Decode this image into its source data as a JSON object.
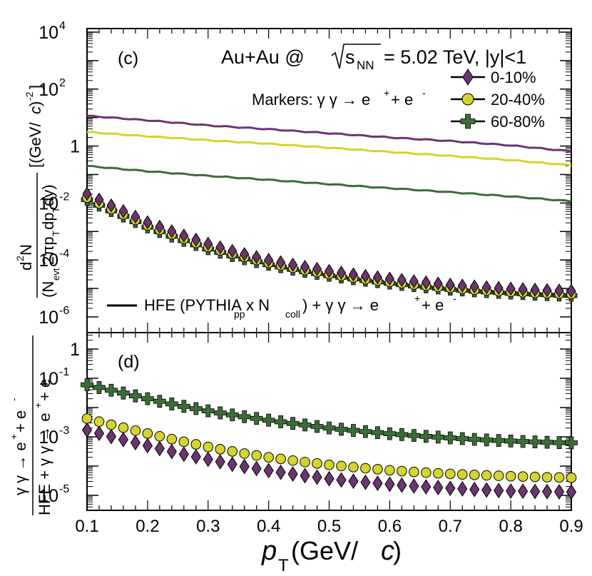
{
  "chart_data": [
    {
      "type": "line",
      "panel_label": "(c)",
      "title_prefix": "Au+Au @",
      "title_sqrt": "s",
      "title_sqrt_sub": "NN",
      "title_suffix": "= 5.02 TeV, |y|<1",
      "ylabel": "d²N / (N_evt 2π p_T dp_T dy) [(GeV/c)^-2]",
      "ylabel_parts": {
        "num": "d",
        "num_sup": "2",
        "num_n": "N",
        "den_a": "(N",
        "den_sub": "evt",
        "den_b": "2πp",
        "den_sub2": "T",
        "den_c": "dp",
        "den_sub3": "T",
        "den_d": "dy)",
        "units": "[(GeV/",
        "units_c": "c",
        "units_end": ")",
        "units_sup": "-2",
        "units_close": "]"
      },
      "ylim": [
        1e-06,
        10000.0
      ],
      "yscale": "log",
      "yticks": [
        {
          "value": 10000.0,
          "base": "10",
          "exp": "4"
        },
        {
          "value": 100.0,
          "base": "10",
          "exp": "2"
        },
        {
          "value": 1,
          "base": "1",
          "exp": ""
        },
        {
          "value": 0.01,
          "base": "10",
          "exp": "-2"
        },
        {
          "value": 0.0001,
          "base": "10",
          "exp": "-4"
        },
        {
          "value": 1e-06,
          "base": "10",
          "exp": "-6"
        }
      ],
      "xlim": [
        0.1,
        0.9
      ],
      "markers_label": "Markers: γ γ → e",
      "markers_sup1": "+",
      "markers_mid": " + e",
      "markers_sup2": "-",
      "line_legend": "HFE (PYTHIA",
      "line_legend_sub": "pp",
      "line_legend_mid": " x N",
      "line_legend_sub2": "coll",
      "line_legend_end": ") + γ γ → e",
      "line_legend_sup1": "+",
      "line_legend_mid2": " + e",
      "line_legend_sup2": "-",
      "series": [
        {
          "name": "0-10%",
          "color": "#6b3570",
          "marker": "diamond",
          "line_points": [
            [
              0.1,
              11.5
            ],
            [
              0.2,
              8.0
            ],
            [
              0.3,
              5.3
            ],
            [
              0.4,
              3.9
            ],
            [
              0.5,
              2.8
            ],
            [
              0.6,
              2.0
            ],
            [
              0.7,
              1.5
            ],
            [
              0.8,
              1.05
            ],
            [
              0.9,
              0.65
            ]
          ],
          "marker_points": [
            [
              0.1,
              0.021
            ],
            [
              0.15,
              0.0065
            ],
            [
              0.2,
              0.0021
            ],
            [
              0.25,
              0.00085
            ],
            [
              0.3,
              0.00037
            ],
            [
              0.35,
              0.00018
            ],
            [
              0.4,
              0.0001
            ],
            [
              0.45,
              6.2e-05
            ],
            [
              0.5,
              4.1e-05
            ],
            [
              0.55,
              2.9e-05
            ],
            [
              0.6,
              2.2e-05
            ],
            [
              0.65,
              1.7e-05
            ],
            [
              0.7,
              1.35e-05
            ],
            [
              0.75,
              1.13e-05
            ],
            [
              0.8,
              9.8e-06
            ],
            [
              0.85,
              8.8e-06
            ],
            [
              0.9,
              8.2e-06
            ]
          ]
        },
        {
          "name": "20-40%",
          "color": "#d4d42a",
          "marker": "circle",
          "line_points": [
            [
              0.1,
              3.1
            ],
            [
              0.2,
              2.2
            ],
            [
              0.3,
              1.6
            ],
            [
              0.4,
              1.2
            ],
            [
              0.5,
              0.87
            ],
            [
              0.6,
              0.62
            ],
            [
              0.7,
              0.45
            ],
            [
              0.8,
              0.32
            ],
            [
              0.9,
              0.21
            ]
          ],
          "marker_points": [
            [
              0.1,
              0.015
            ],
            [
              0.15,
              0.0048
            ],
            [
              0.2,
              0.0016
            ],
            [
              0.25,
              0.00064
            ],
            [
              0.3,
              0.00028
            ],
            [
              0.35,
              0.00014
            ],
            [
              0.4,
              7.7e-05
            ],
            [
              0.45,
              4.7e-05
            ],
            [
              0.5,
              3.1e-05
            ],
            [
              0.55,
              2.2e-05
            ],
            [
              0.6,
              1.65e-05
            ],
            [
              0.65,
              1.28e-05
            ],
            [
              0.7,
              1.02e-05
            ],
            [
              0.75,
              8.5e-06
            ],
            [
              0.8,
              7.4e-06
            ],
            [
              0.85,
              6.7e-06
            ],
            [
              0.9,
              6.2e-06
            ]
          ]
        },
        {
          "name": "60-80%",
          "color": "#3b6e36",
          "marker": "plus",
          "line_points": [
            [
              0.1,
              0.2
            ],
            [
              0.2,
              0.13
            ],
            [
              0.3,
              0.09
            ],
            [
              0.4,
              0.065
            ],
            [
              0.5,
              0.046
            ],
            [
              0.6,
              0.033
            ],
            [
              0.7,
              0.024
            ],
            [
              0.8,
              0.017
            ],
            [
              0.9,
              0.0115
            ]
          ],
          "marker_points": [
            [
              0.1,
              0.013
            ],
            [
              0.15,
              0.0042
            ],
            [
              0.2,
              0.0014
            ],
            [
              0.25,
              0.00056
            ],
            [
              0.3,
              0.00024
            ],
            [
              0.35,
              0.00012
            ],
            [
              0.4,
              6.8e-05
            ],
            [
              0.45,
              4.2e-05
            ],
            [
              0.5,
              2.8e-05
            ],
            [
              0.55,
              2e-05
            ],
            [
              0.6,
              1.5e-05
            ],
            [
              0.65,
              1.15e-05
            ],
            [
              0.7,
              9.2e-06
            ],
            [
              0.75,
              7.7e-06
            ],
            [
              0.8,
              6.7e-06
            ],
            [
              0.85,
              6e-06
            ],
            [
              0.9,
              5.6e-06
            ]
          ]
        }
      ]
    },
    {
      "type": "scatter",
      "panel_label": "(d)",
      "ylabel_num": "γ γ → e",
      "ylabel_num_sup1": "+",
      "ylabel_num_mid": " + e",
      "ylabel_num_sup2": "-",
      "ylabel_den": "HFE + γ γ → e",
      "ylabel_den_sup1": "+",
      "ylabel_den_mid": " + e",
      "ylim": [
        3e-06,
        3
      ],
      "yscale": "log",
      "yticks": [
        {
          "value": 1,
          "base": "1",
          "exp": ""
        },
        {
          "value": 0.1,
          "base": "10",
          "exp": "-1"
        },
        {
          "value": 0.001,
          "base": "10",
          "exp": "-3"
        },
        {
          "value": 1e-05,
          "base": "10",
          "exp": "-5"
        }
      ],
      "xlim": [
        0.1,
        0.9
      ],
      "xticks": [
        "0.1",
        "0.2",
        "0.3",
        "0.4",
        "0.5",
        "0.6",
        "0.7",
        "0.8",
        "0.9"
      ],
      "xlabel_p": "p",
      "xlabel_sub": "T",
      "xlabel_units": " (GeV/",
      "xlabel_c": "c",
      "xlabel_end": ")",
      "series": [
        {
          "name": "0-10%",
          "color": "#6b3570",
          "marker": "diamond",
          "points": [
            [
              0.1,
              0.0017
            ],
            [
              0.15,
              0.0009
            ],
            [
              0.2,
              0.0005
            ],
            [
              0.25,
              0.00028
            ],
            [
              0.3,
              0.00017
            ],
            [
              0.35,
              0.000105
            ],
            [
              0.4,
              7e-05
            ],
            [
              0.45,
              5e-05
            ],
            [
              0.5,
              3.7e-05
            ],
            [
              0.55,
              2.9e-05
            ],
            [
              0.6,
              2.4e-05
            ],
            [
              0.65,
              2e-05
            ],
            [
              0.7,
              1.75e-05
            ],
            [
              0.75,
              1.55e-05
            ],
            [
              0.8,
              1.4e-05
            ],
            [
              0.85,
              1.35e-05
            ],
            [
              0.9,
              1.3e-05
            ]
          ]
        },
        {
          "name": "20-40%",
          "color": "#d4d42a",
          "marker": "circle",
          "points": [
            [
              0.1,
              0.0042
            ],
            [
              0.15,
              0.0023
            ],
            [
              0.2,
              0.0013
            ],
            [
              0.25,
              0.00075
            ],
            [
              0.3,
              0.00045
            ],
            [
              0.35,
              0.00029
            ],
            [
              0.4,
              0.0002
            ],
            [
              0.45,
              0.000145
            ],
            [
              0.5,
              0.00011
            ],
            [
              0.55,
              8.8e-05
            ],
            [
              0.6,
              7.2e-05
            ],
            [
              0.65,
              6.1e-05
            ],
            [
              0.7,
              5.4e-05
            ],
            [
              0.75,
              4.9e-05
            ],
            [
              0.8,
              4.5e-05
            ],
            [
              0.85,
              4.2e-05
            ],
            [
              0.9,
              4e-05
            ]
          ]
        },
        {
          "name": "60-80%",
          "color": "#3b6e36",
          "marker": "plus",
          "points": [
            [
              0.1,
              0.06
            ],
            [
              0.15,
              0.035
            ],
            [
              0.2,
              0.02
            ],
            [
              0.25,
              0.012
            ],
            [
              0.3,
              0.0077
            ],
            [
              0.35,
              0.0052
            ],
            [
              0.4,
              0.0037
            ],
            [
              0.45,
              0.0027
            ],
            [
              0.5,
              0.002
            ],
            [
              0.55,
              0.00158
            ],
            [
              0.6,
              0.00128
            ],
            [
              0.65,
              0.00107
            ],
            [
              0.7,
              0.00092
            ],
            [
              0.75,
              0.0008
            ],
            [
              0.8,
              0.00072
            ],
            [
              0.85,
              0.00066
            ],
            [
              0.9,
              0.00062
            ]
          ]
        }
      ]
    }
  ]
}
